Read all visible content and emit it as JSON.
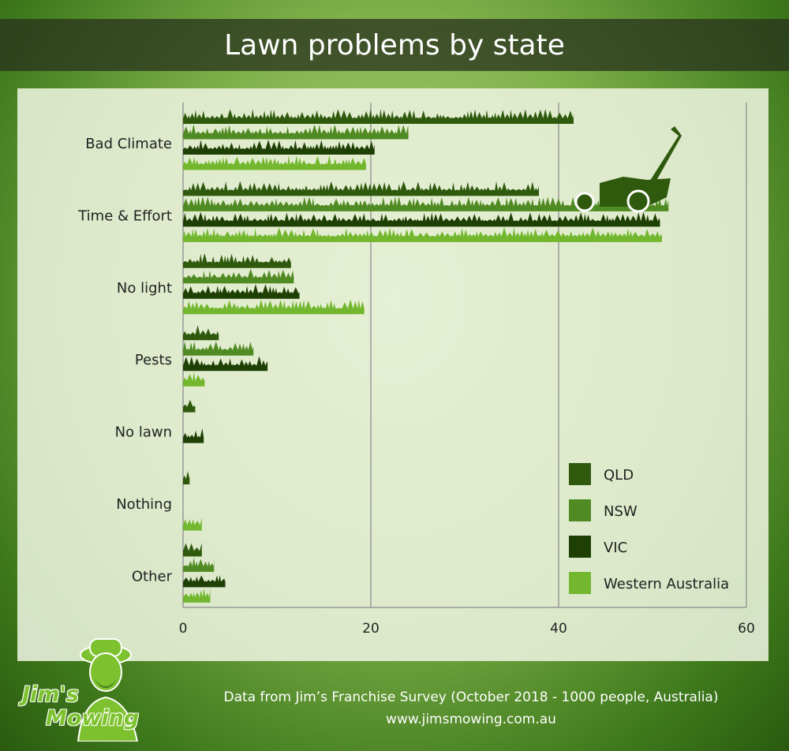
{
  "header": {
    "title": "Lawn problems by state"
  },
  "footer": {
    "source": "Data from Jim’s Franchise Survey (October 2018 - 1000 people, Australia)",
    "url": "www.jimsmowing.com.au"
  },
  "logo": {
    "line1": "Jim's",
    "line2": "Mowing"
  },
  "chart_data": {
    "type": "bar",
    "orientation": "horizontal",
    "title": "Lawn problems by state",
    "categories": [
      "Bad Climate",
      "Time & Effort",
      "No light",
      "Pests",
      "No lawn",
      "Nothing",
      "Other"
    ],
    "series": [
      {
        "name": "QLD",
        "color": "#2f5a0e",
        "values": [
          41.6,
          37.9,
          11.5,
          3.8,
          1.3,
          0.7,
          2.0
        ]
      },
      {
        "name": "NSW",
        "color": "#4f8a22",
        "values": [
          24.0,
          51.7,
          11.8,
          7.5,
          0,
          0,
          3.3
        ]
      },
      {
        "name": "VIC",
        "color": "#1f4004",
        "values": [
          20.4,
          50.8,
          12.4,
          9.0,
          2.2,
          0,
          4.5
        ]
      },
      {
        "name": "Western Australia",
        "color": "#72b72e",
        "values": [
          19.5,
          51.0,
          19.3,
          2.3,
          0,
          2.0,
          2.9
        ]
      }
    ],
    "xlim": [
      0,
      60
    ],
    "xticks": [
      0,
      20,
      40,
      60
    ],
    "grid": true,
    "legend_position": "bottom-right",
    "xlabel": "",
    "ylabel": ""
  }
}
